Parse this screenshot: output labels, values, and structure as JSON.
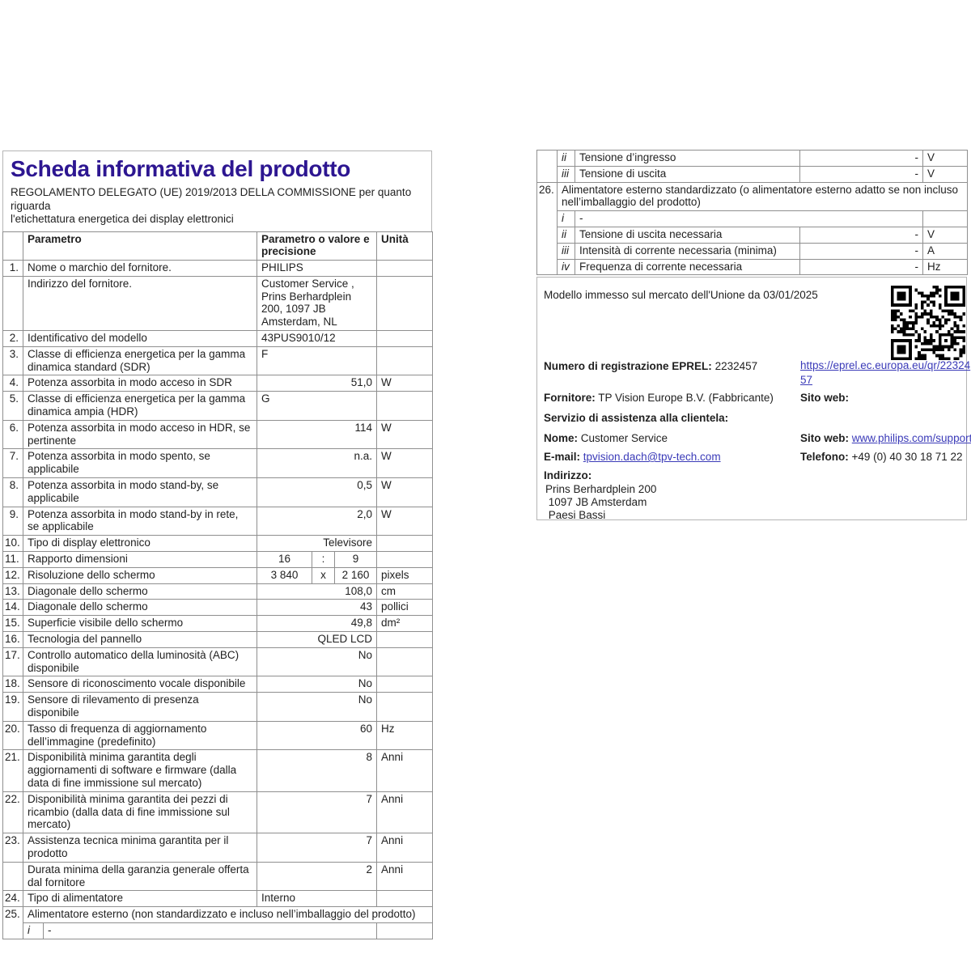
{
  "colors": {
    "title": "#2d1691",
    "link": "#3a3ab8"
  },
  "header": {
    "title": "Scheda informativa del prodotto",
    "subtitle_line1": "REGOLAMENTO DELEGATO (UE) 2019/2013 DELLA COMMISSIONE per quanto riguarda",
    "subtitle_line2": "l'etichettatura energetica dei display elettronici"
  },
  "left_table": {
    "columns": {
      "param": "Parametro",
      "value": "Parametro o valore e pre­cisione",
      "unit": "Unità"
    },
    "rows": [
      {
        "num": "1.",
        "label": "Nome o marchio del fornitore.",
        "value": "PHILIPS",
        "align": "left",
        "unit": ""
      },
      {
        "num": "",
        "label": "Indirizzo del fornitore.",
        "value": "Customer Service , Prins Berhardplein 200, 1097 JB Amsterdam, NL",
        "align": "left",
        "unit": ""
      },
      {
        "num": "2.",
        "label": "Identificativo del modello",
        "value": "43PUS9010/12",
        "align": "left",
        "unit": ""
      },
      {
        "num": "3.",
        "label": "Classe di efficienza energetica per la gamma dinami­ca standard (SDR)",
        "value": "F",
        "align": "left",
        "unit": ""
      },
      {
        "num": "4.",
        "label": "Potenza assorbita in modo acceso in SDR",
        "value": "51,0",
        "align": "right",
        "unit": "W"
      },
      {
        "num": "5.",
        "label": "Classe di efficienza energetica per la gamma dinami­ca ampia (HDR)",
        "value": "G",
        "align": "left",
        "unit": ""
      },
      {
        "num": "6.",
        "label": "Potenza assorbita in modo acceso in HDR, se perti­nente",
        "value": "114",
        "align": "right",
        "unit": "W"
      },
      {
        "num": "7.",
        "label": "Potenza assorbita in modo spento, se applicabile",
        "value": "n.a.",
        "align": "right",
        "unit": "W"
      },
      {
        "num": "8.",
        "label": "Potenza assorbita in modo stand-by, se applicabile",
        "value": "0,5",
        "align": "right",
        "unit": "W"
      },
      {
        "num": "9.",
        "label": "Potenza assorbita in modo stand-by in rete, se appli­cabile",
        "value": "2,0",
        "align": "right",
        "unit": "W"
      },
      {
        "num": "10.",
        "label": "Tipo di display elettronico",
        "value": "Televisore",
        "align": "right",
        "unit": ""
      },
      {
        "num": "11.",
        "label": "Rapporto dimensioni",
        "split": [
          "16",
          ":",
          "9"
        ],
        "unit": ""
      },
      {
        "num": "12.",
        "label": "Risoluzione dello schermo",
        "split": [
          "3 840",
          "x",
          "2 160"
        ],
        "unit": "pixels"
      },
      {
        "num": "13.",
        "label": "Diagonale dello schermo",
        "value": "108,0",
        "align": "right",
        "unit": "cm"
      },
      {
        "num": "14.",
        "label": "Diagonale dello schermo",
        "value": "43",
        "align": "right",
        "unit": "pollici"
      },
      {
        "num": "15.",
        "label": "Superficie visibile dello schermo",
        "value": "49,8",
        "align": "right",
        "unit": "dm²"
      },
      {
        "num": "16.",
        "label": "Tecnologia del pannello",
        "value": "QLED LCD",
        "align": "right",
        "unit": ""
      },
      {
        "num": "17.",
        "label": "Controllo automatico della luminosità (ABC) disponi­bile",
        "value": "No",
        "align": "right",
        "unit": ""
      },
      {
        "num": "18.",
        "label": "Sensore di riconoscimento vocale disponibile",
        "value": "No",
        "align": "right",
        "unit": ""
      },
      {
        "num": "19.",
        "label": "Sensore di rilevamento di presenza disponibile",
        "value": "No",
        "align": "right",
        "unit": ""
      },
      {
        "num": "20.",
        "label": "Tasso di frequenza di aggiornamento dell’immagine (predefinito)",
        "value": "60",
        "align": "right",
        "unit": "Hz"
      },
      {
        "num": "21.",
        "label": "Disponibilità minima garantita degli aggiornamenti di software e firmware (dalla data di fine immissione sul mercato)",
        "value": "8",
        "align": "right",
        "unit": "Anni"
      },
      {
        "num": "22.",
        "label": "Disponibilità minima garantita dei pezzi di ricambio (dalla data di fine immissione sul mercato)",
        "value": "7",
        "align": "right",
        "unit": "Anni"
      },
      {
        "num": "23.",
        "label": "Assistenza tecnica minima garantita per il prodotto",
        "value": "7",
        "align": "right",
        "unit": "Anni"
      },
      {
        "num": "",
        "label": "Durata minima della garanzia generale offerta dal fornitore",
        "value": "2",
        "align": "right",
        "unit": "Anni"
      },
      {
        "num": "24.",
        "label": "Tipo di alimentatore",
        "value": "Interno",
        "align": "left",
        "unit": ""
      },
      {
        "num": "25.",
        "num_rowspan": 2,
        "span_label": "Alimentatore esterno (non standardizzato e incluso nell’imballaggio del prodotto)"
      },
      {
        "no_num": true,
        "roman": "i",
        "roman_value": "-"
      }
    ]
  },
  "right_table": {
    "rows": [
      {
        "num": "",
        "num_rowspan": 2,
        "roman": "ii",
        "label": "Tensione d’ingresso",
        "value": "-",
        "unit": "V"
      },
      {
        "no_num": true,
        "roman": "iii",
        "label": "Tensione di uscita",
        "value": "-",
        "unit": "V"
      },
      {
        "num": "26.",
        "num_rowspan": 5,
        "span_label": "Alimentatore esterno standardizzato (o alimentatore esterno adatto se non incluso nell’im­ballaggio del prodotto)"
      },
      {
        "no_num": true,
        "roman": "i",
        "roman_value": "-"
      },
      {
        "no_num": true,
        "roman": "ii",
        "label": "Tensione di uscita necessaria",
        "value": "-",
        "unit": "V"
      },
      {
        "no_num": true,
        "roman": "iii",
        "label": "Intensità di corrente necessaria (minima)",
        "value": "-",
        "unit": "A"
      },
      {
        "no_num": true,
        "roman": "iv",
        "label": "Frequenza di corrente necessaria",
        "value": "-",
        "unit": "Hz"
      }
    ]
  },
  "info": {
    "market_line": "Modello immesso sul mercato dell'Unione da 03/01/2025",
    "eprel_label": "Numero di registrazione EPREL:",
    "eprel_value": "2232457",
    "eprel_link": "https://eprel.ec.europa.eu/qr/2232457",
    "fornitore_label": "Fornitore:",
    "fornitore_value": "TP Vision Europe B.V. (Fabbricante)",
    "sito_web_label": "Sito web:",
    "servizio_label": "Servizio di assistenza alla clientela:",
    "nome_label": "Nome:",
    "nome_value": "Customer Service",
    "sito_web_value": "www.philips.com/support",
    "email_label": "E-mail:",
    "email_value": "tpvision.dach@tpv-tech.com",
    "telefono_label": "Telefono:",
    "telefono_value": "+49 (0) 40 30 18 71 22",
    "indirizzo_label": "Indirizzo:",
    "address_lines": [
      "Prins Berhardplein 200",
      " 1097 JB Amsterdam",
      " Paesi Bassi"
    ],
    "qr_icon": "qr-code"
  }
}
